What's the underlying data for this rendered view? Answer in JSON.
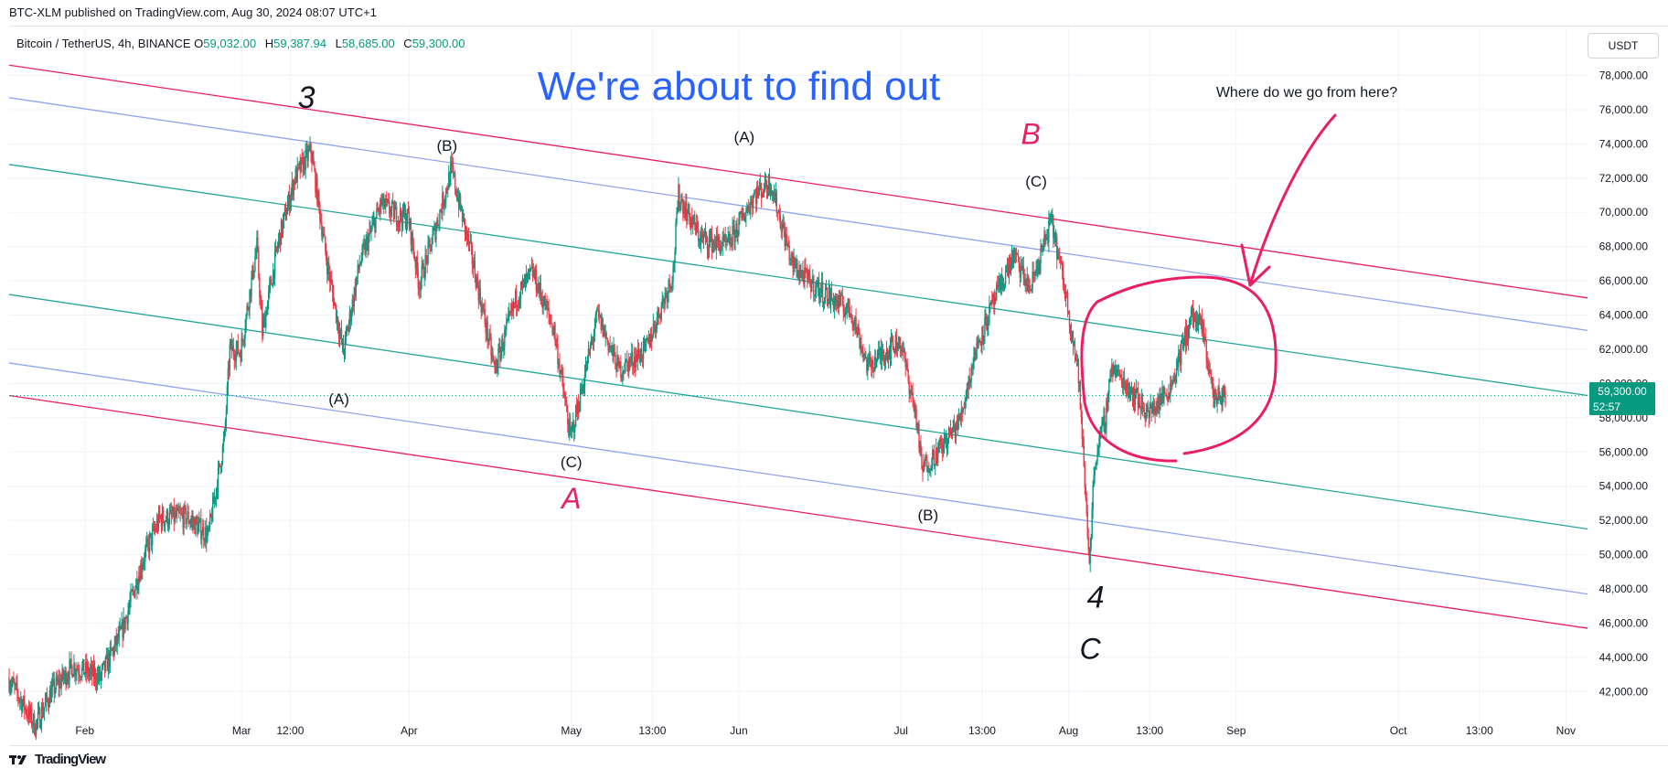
{
  "publish_info": "BTC-XLM published on TradingView.com, Aug 30, 2024 08:07 UTC+1",
  "legend": {
    "symbol": "Bitcoin / TetherUS, 4h, BINANCE",
    "o_label": "O",
    "o": "59,032.00",
    "h_label": "H",
    "h": "59,387.94",
    "l_label": "L",
    "l": "58,685.00",
    "c_label": "C",
    "c": "59,300.00"
  },
  "currency_button": "USDT",
  "headline": "We're about to find out",
  "question": "Where do we go from here?",
  "price_badge": {
    "price": "59,300.00",
    "countdown": "52:57"
  },
  "footer": {
    "brand": "TradingView",
    "logo": "tradingview-logo-icon"
  },
  "colors": {
    "up": "#089981",
    "down": "#f23645",
    "headline": "#2962ff",
    "pink": "#e91e63",
    "blue_line": "#90a4f0",
    "green_line": "#26a69a"
  },
  "chart_data": {
    "type": "candlestick",
    "symbol": "BTCUSDT",
    "interval": "4h",
    "x_ticks": [
      "Feb",
      "Mar",
      "12:00",
      "Apr",
      "May",
      "13:00",
      "Jun",
      "Jul",
      "13:00",
      "Aug",
      "13:00",
      "Sep",
      "Oct",
      "13:00",
      "Nov"
    ],
    "x_tick_dates": [
      "2024-02-01",
      "2024-03-01",
      "2024-03-10",
      "2024-04-01",
      "2024-05-01",
      "2024-05-16",
      "2024-06-01",
      "2024-07-01",
      "2024-07-16",
      "2024-08-01",
      "2024-08-16",
      "2024-09-01",
      "2024-10-01",
      "2024-10-16",
      "2024-11-01"
    ],
    "y_ticks": [
      "78,000.00",
      "76,000.00",
      "74,000.00",
      "72,000.00",
      "70,000.00",
      "68,000.00",
      "66,000.00",
      "64,000.00",
      "62,000.00",
      "60,000.00",
      "58,000.00",
      "56,000.00",
      "54,000.00",
      "52,000.00",
      "50,000.00",
      "48,000.00",
      "46,000.00",
      "44,000.00",
      "42,000.00"
    ],
    "y_tick_values": [
      78000,
      76000,
      74000,
      72000,
      70000,
      68000,
      66000,
      64000,
      62000,
      60000,
      58000,
      56000,
      54000,
      52000,
      50000,
      48000,
      46000,
      44000,
      42000
    ],
    "ylim": [
      40200,
      79200
    ],
    "xlim": [
      "2024-01-18",
      "2024-11-05"
    ],
    "last_price": 59300,
    "price_path": [
      [
        "2024-01-18",
        42800
      ],
      [
        "2024-01-23",
        40000
      ],
      [
        "2024-01-26",
        42000
      ],
      [
        "2024-01-30",
        43500
      ],
      [
        "2024-02-04",
        42800
      ],
      [
        "2024-02-08",
        45500
      ],
      [
        "2024-02-12",
        49800
      ],
      [
        "2024-02-15",
        52100
      ],
      [
        "2024-02-20",
        52200
      ],
      [
        "2024-02-24",
        51100
      ],
      [
        "2024-02-27",
        56800
      ],
      [
        "2024-02-28",
        62000
      ],
      [
        "2024-03-01",
        61900
      ],
      [
        "2024-03-04",
        68000
      ],
      [
        "2024-03-05",
        63000
      ],
      [
        "2024-03-08",
        68300
      ],
      [
        "2024-03-11",
        72000
      ],
      [
        "2024-03-14",
        73600
      ],
      [
        "2024-03-17",
        67000
      ],
      [
        "2024-03-20",
        61800
      ],
      [
        "2024-03-23",
        67000
      ],
      [
        "2024-03-27",
        70500
      ],
      [
        "2024-03-30",
        69800
      ],
      [
        "2024-04-01",
        69700
      ],
      [
        "2024-04-03",
        65800
      ],
      [
        "2024-04-06",
        69000
      ],
      [
        "2024-04-09",
        72500
      ],
      [
        "2024-04-13",
        67000
      ],
      [
        "2024-04-17",
        60800
      ],
      [
        "2024-04-21",
        65000
      ],
      [
        "2024-04-24",
        66500
      ],
      [
        "2024-04-28",
        63100
      ],
      [
        "2024-05-01",
        56800
      ],
      [
        "2024-05-03",
        59500
      ],
      [
        "2024-05-06",
        64000
      ],
      [
        "2024-05-10",
        60800
      ],
      [
        "2024-05-15",
        62000
      ],
      [
        "2024-05-20",
        66500
      ],
      [
        "2024-05-21",
        71000
      ],
      [
        "2024-05-25",
        68500
      ],
      [
        "2024-05-30",
        68000
      ],
      [
        "2024-06-04",
        71000
      ],
      [
        "2024-06-07",
        71800
      ],
      [
        "2024-06-11",
        67000
      ],
      [
        "2024-06-14",
        66000
      ],
      [
        "2024-06-18",
        65000
      ],
      [
        "2024-06-22",
        64200
      ],
      [
        "2024-06-25",
        61000
      ],
      [
        "2024-06-28",
        61800
      ],
      [
        "2024-07-01",
        62500
      ],
      [
        "2024-07-04",
        58000
      ],
      [
        "2024-07-05",
        55000
      ],
      [
        "2024-07-08",
        56000
      ],
      [
        "2024-07-12",
        57800
      ],
      [
        "2024-07-15",
        62000
      ],
      [
        "2024-07-18",
        64500
      ],
      [
        "2024-07-22",
        67500
      ],
      [
        "2024-07-25",
        65500
      ],
      [
        "2024-07-29",
        69500
      ],
      [
        "2024-08-01",
        64600
      ],
      [
        "2024-08-03",
        60500
      ],
      [
        "2024-08-05",
        49600
      ],
      [
        "2024-08-06",
        55500
      ],
      [
        "2024-08-08",
        58000
      ],
      [
        "2024-08-09",
        61000
      ],
      [
        "2024-08-13",
        59500
      ],
      [
        "2024-08-16",
        58200
      ],
      [
        "2024-08-20",
        59800
      ],
      [
        "2024-08-24",
        64000
      ],
      [
        "2024-08-26",
        63100
      ],
      [
        "2024-08-28",
        59200
      ],
      [
        "2024-08-30",
        59300
      ]
    ],
    "channel_lines": [
      {
        "role": "outer-upper",
        "color": "pink",
        "from": [
          "2024-01-18",
          78600
        ],
        "to": [
          "2024-11-05",
          65000
        ]
      },
      {
        "role": "inner-upper",
        "color": "blue",
        "from": [
          "2024-01-18",
          76700
        ],
        "to": [
          "2024-11-05",
          63100
        ]
      },
      {
        "role": "upper-mid",
        "color": "green",
        "from": [
          "2024-01-18",
          72800
        ],
        "to": [
          "2024-11-05",
          59300
        ]
      },
      {
        "role": "lower-mid",
        "color": "green",
        "from": [
          "2024-01-18",
          65200
        ],
        "to": [
          "2024-11-05",
          51500
        ]
      },
      {
        "role": "inner-lower",
        "color": "blue",
        "from": [
          "2024-01-18",
          61200
        ],
        "to": [
          "2024-11-05",
          47700
        ]
      },
      {
        "role": "outer-lower",
        "color": "pink",
        "from": [
          "2024-01-18",
          59300
        ],
        "to": [
          "2024-11-05",
          45700
        ]
      }
    ],
    "annotations": [
      {
        "text": "3",
        "date": "2024-03-13",
        "price": 76100,
        "style": "wave-primary",
        "color": "black"
      },
      {
        "text": "(B)",
        "date": "2024-04-08",
        "price": 73600,
        "style": "wave-minor",
        "color": "black"
      },
      {
        "text": "(A)",
        "date": "2024-06-02",
        "price": 74100,
        "style": "wave-minor",
        "color": "black"
      },
      {
        "text": "B",
        "date": "2024-07-25",
        "price": 74000,
        "style": "wave-intermediate",
        "color": "pink"
      },
      {
        "text": "(C)",
        "date": "2024-07-26",
        "price": 71500,
        "style": "wave-minor",
        "color": "black"
      },
      {
        "text": "(A)",
        "date": "2024-03-19",
        "price": 58800,
        "style": "wave-minor",
        "color": "black"
      },
      {
        "text": "(C)",
        "date": "2024-05-01",
        "price": 55100,
        "style": "wave-minor",
        "color": "black"
      },
      {
        "text": "A",
        "date": "2024-05-01",
        "price": 52700,
        "style": "wave-intermediate",
        "color": "pink"
      },
      {
        "text": "(B)",
        "date": "2024-07-06",
        "price": 52000,
        "style": "wave-minor",
        "color": "black"
      },
      {
        "text": "4",
        "date": "2024-08-06",
        "price": 46900,
        "style": "wave-primary",
        "color": "black"
      },
      {
        "text": "C",
        "date": "2024-08-05",
        "price": 43900,
        "style": "wave-intermediate",
        "color": "black"
      }
    ]
  }
}
